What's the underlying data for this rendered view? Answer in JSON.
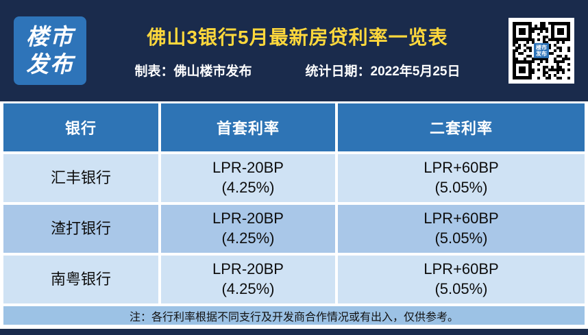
{
  "header": {
    "logo_line1": "楼市",
    "logo_line2": "发布",
    "title": "佛山3银行5月最新房贷利率一览表",
    "maker_label": "制表：佛山楼市发布",
    "date_label": "统计日期：2022年5月25日",
    "qr_center_line1": "楼市",
    "qr_center_line2": "发布"
  },
  "table": {
    "columns": [
      "银行",
      "首套利率",
      "二套利率"
    ],
    "rows": [
      {
        "bank": "汇丰银行",
        "first_rate": "LPR-20BP",
        "first_pct": "(4.25%)",
        "second_rate": "LPR+60BP",
        "second_pct": "(5.05%)"
      },
      {
        "bank": "渣打银行",
        "first_rate": "LPR-20BP",
        "first_pct": "(4.25%)",
        "second_rate": "LPR+60BP",
        "second_pct": "(5.05%)"
      },
      {
        "bank": "南粤银行",
        "first_rate": "LPR-20BP",
        "first_pct": "(4.25%)",
        "second_rate": "LPR+60BP",
        "second_pct": "(5.05%)"
      }
    ],
    "note": "注：各行利率根据不同支行及开发商合作情况或有出入，仅供参考。"
  },
  "chart_data": {
    "type": "table",
    "title": "佛山3银行5月最新房贷利率一览表",
    "columns": [
      "银行",
      "首套利率",
      "二套利率"
    ],
    "rows": [
      [
        "汇丰银行",
        "LPR-20BP (4.25%)",
        "LPR+60BP (5.05%)"
      ],
      [
        "渣打银行",
        "LPR-20BP (4.25%)",
        "LPR+60BP (5.05%)"
      ],
      [
        "南粤银行",
        "LPR-20BP (4.25%)",
        "LPR+60BP (5.05%)"
      ]
    ],
    "note": "注：各行利率根据不同支行及开发商合作情况或有出入，仅供参考。",
    "source": "制表：佛山楼市发布",
    "date": "统计日期：2022年5月25日"
  },
  "colors": {
    "navy": "#1a2b4c",
    "logo_blue": "#2e74b9",
    "title_yellow": "#ffd83c",
    "header_blue": "#2e74b5",
    "row_light": "#cfe2f4",
    "row_medium": "#a9c7e8",
    "note_blue": "#9cc2e5"
  }
}
